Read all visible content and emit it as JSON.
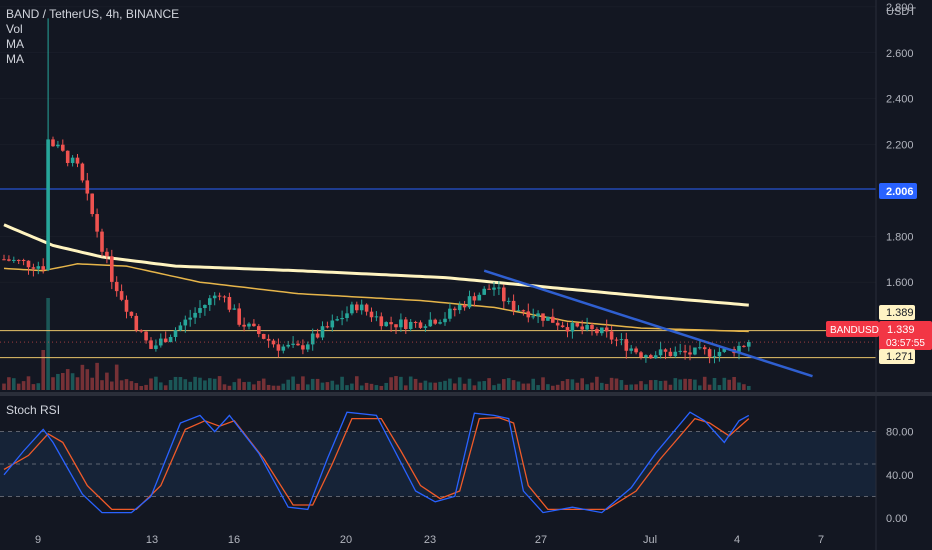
{
  "legend": {
    "title": "BAND / TetherUS, 4h, BINANCE",
    "items": [
      "Vol",
      "MA",
      "MA"
    ]
  },
  "axis": {
    "currency": "USDT",
    "price_ticks": [
      "2.800",
      "2.600",
      "2.400",
      "2.200",
      "1.800",
      "1.600"
    ],
    "rsi_ticks": [
      "80.00",
      "40.00",
      "0.00"
    ],
    "x_ticks": [
      "9",
      "13",
      "16",
      "20",
      "23",
      "27",
      "Jul",
      "4",
      "7"
    ]
  },
  "price_tags": {
    "resistance": "2.006",
    "level_high": "1.389",
    "symbol": "BANDUSDT",
    "last": "1.339",
    "countdown": "03:57:55",
    "level_low": "1.271"
  },
  "rsi_panel": {
    "title": "Stoch RSI"
  },
  "colors": {
    "background": "#131722",
    "up": "#26a69a",
    "down": "#ef5350",
    "ma_long": "#fff4c0",
    "ma_short": "#e6b54a",
    "trendline": "#2f5fd0",
    "resistance": "#2962ff",
    "level": "#e8c46a",
    "rsi_k": "#2962ff",
    "rsi_d": "#f05a28",
    "grid": "#2a2e39"
  },
  "chart_data": {
    "type": "candlestick",
    "symbol": "BANDUSDT",
    "interval": "4h",
    "y_range": [
      1.13,
      2.83
    ],
    "y_ticks": [
      2.8,
      2.6,
      2.4,
      2.2,
      1.8,
      1.6
    ],
    "x_labels": [
      "9",
      "13",
      "16",
      "20",
      "23",
      "27",
      "Jul",
      "4",
      "7"
    ],
    "horizontal_levels": [
      2.006,
      1.389,
      1.271
    ],
    "last_price": 1.339,
    "key_points": [
      {
        "t": 0,
        "price": 1.7
      },
      {
        "t": 8,
        "price": 1.67
      },
      {
        "t": 9,
        "price": 2.22
      },
      {
        "t": 15,
        "price": 2.1
      },
      {
        "t": 22,
        "price": 1.62
      },
      {
        "t": 28,
        "price": 1.37
      },
      {
        "t": 30,
        "price": 1.31
      },
      {
        "t": 36,
        "price": 1.41
      },
      {
        "t": 44,
        "price": 1.56
      },
      {
        "t": 48,
        "price": 1.43
      },
      {
        "t": 56,
        "price": 1.32
      },
      {
        "t": 60,
        "price": 1.31
      },
      {
        "t": 66,
        "price": 1.4
      },
      {
        "t": 72,
        "price": 1.5
      },
      {
        "t": 78,
        "price": 1.42
      },
      {
        "t": 84,
        "price": 1.42
      },
      {
        "t": 90,
        "price": 1.45
      },
      {
        "t": 96,
        "price": 1.54
      },
      {
        "t": 100,
        "price": 1.58
      },
      {
        "t": 103,
        "price": 1.5
      },
      {
        "t": 110,
        "price": 1.45
      },
      {
        "t": 116,
        "price": 1.4
      },
      {
        "t": 122,
        "price": 1.38
      },
      {
        "t": 130,
        "price": 1.29
      },
      {
        "t": 140,
        "price": 1.29
      },
      {
        "t": 148,
        "price": 1.3
      },
      {
        "t": 152,
        "price": 1.339
      }
    ],
    "ma_long": [
      [
        0,
        1.85
      ],
      [
        10,
        1.76
      ],
      [
        20,
        1.71
      ],
      [
        35,
        1.67
      ],
      [
        60,
        1.65
      ],
      [
        90,
        1.62
      ],
      [
        110,
        1.58
      ],
      [
        130,
        1.54
      ],
      [
        152,
        1.5
      ]
    ],
    "ma_short": [
      [
        0,
        1.66
      ],
      [
        8,
        1.65
      ],
      [
        15,
        1.68
      ],
      [
        25,
        1.67
      ],
      [
        40,
        1.6
      ],
      [
        60,
        1.55
      ],
      [
        85,
        1.52
      ],
      [
        100,
        1.49
      ],
      [
        115,
        1.43
      ],
      [
        130,
        1.4
      ],
      [
        152,
        1.385
      ]
    ],
    "trendline": [
      [
        98,
        1.65
      ],
      [
        165,
        1.19
      ]
    ],
    "stoch_rsi": {
      "range": [
        0,
        100
      ],
      "ticks": [
        80,
        40,
        0
      ],
      "k": [
        [
          0,
          40
        ],
        [
          4,
          62
        ],
        [
          8,
          82
        ],
        [
          10,
          70
        ],
        [
          16,
          22
        ],
        [
          20,
          5
        ],
        [
          26,
          5
        ],
        [
          30,
          20
        ],
        [
          36,
          88
        ],
        [
          40,
          95
        ],
        [
          43,
          80
        ],
        [
          46,
          95
        ],
        [
          52,
          60
        ],
        [
          58,
          10
        ],
        [
          62,
          8
        ],
        [
          66,
          55
        ],
        [
          70,
          98
        ],
        [
          76,
          95
        ],
        [
          80,
          60
        ],
        [
          84,
          25
        ],
        [
          88,
          15
        ],
        [
          92,
          20
        ],
        [
          96,
          97
        ],
        [
          100,
          95
        ],
        [
          103,
          92
        ],
        [
          106,
          25
        ],
        [
          110,
          5
        ],
        [
          116,
          10
        ],
        [
          122,
          5
        ],
        [
          128,
          28
        ],
        [
          133,
          60
        ],
        [
          140,
          98
        ],
        [
          143,
          90
        ],
        [
          147,
          70
        ],
        [
          150,
          90
        ],
        [
          152,
          95
        ]
      ],
      "d": [
        [
          0,
          45
        ],
        [
          5,
          58
        ],
        [
          9,
          78
        ],
        [
          12,
          70
        ],
        [
          17,
          30
        ],
        [
          22,
          8
        ],
        [
          27,
          8
        ],
        [
          32,
          30
        ],
        [
          37,
          82
        ],
        [
          41,
          90
        ],
        [
          44,
          85
        ],
        [
          47,
          90
        ],
        [
          53,
          55
        ],
        [
          59,
          12
        ],
        [
          63,
          12
        ],
        [
          67,
          50
        ],
        [
          71,
          92
        ],
        [
          77,
          92
        ],
        [
          81,
          62
        ],
        [
          85,
          30
        ],
        [
          89,
          18
        ],
        [
          93,
          25
        ],
        [
          97,
          92
        ],
        [
          101,
          93
        ],
        [
          104,
          88
        ],
        [
          107,
          30
        ],
        [
          111,
          8
        ],
        [
          117,
          8
        ],
        [
          123,
          8
        ],
        [
          129,
          25
        ],
        [
          134,
          55
        ],
        [
          141,
          92
        ],
        [
          144,
          88
        ],
        [
          148,
          76
        ],
        [
          150,
          84
        ],
        [
          152,
          92
        ]
      ]
    }
  }
}
